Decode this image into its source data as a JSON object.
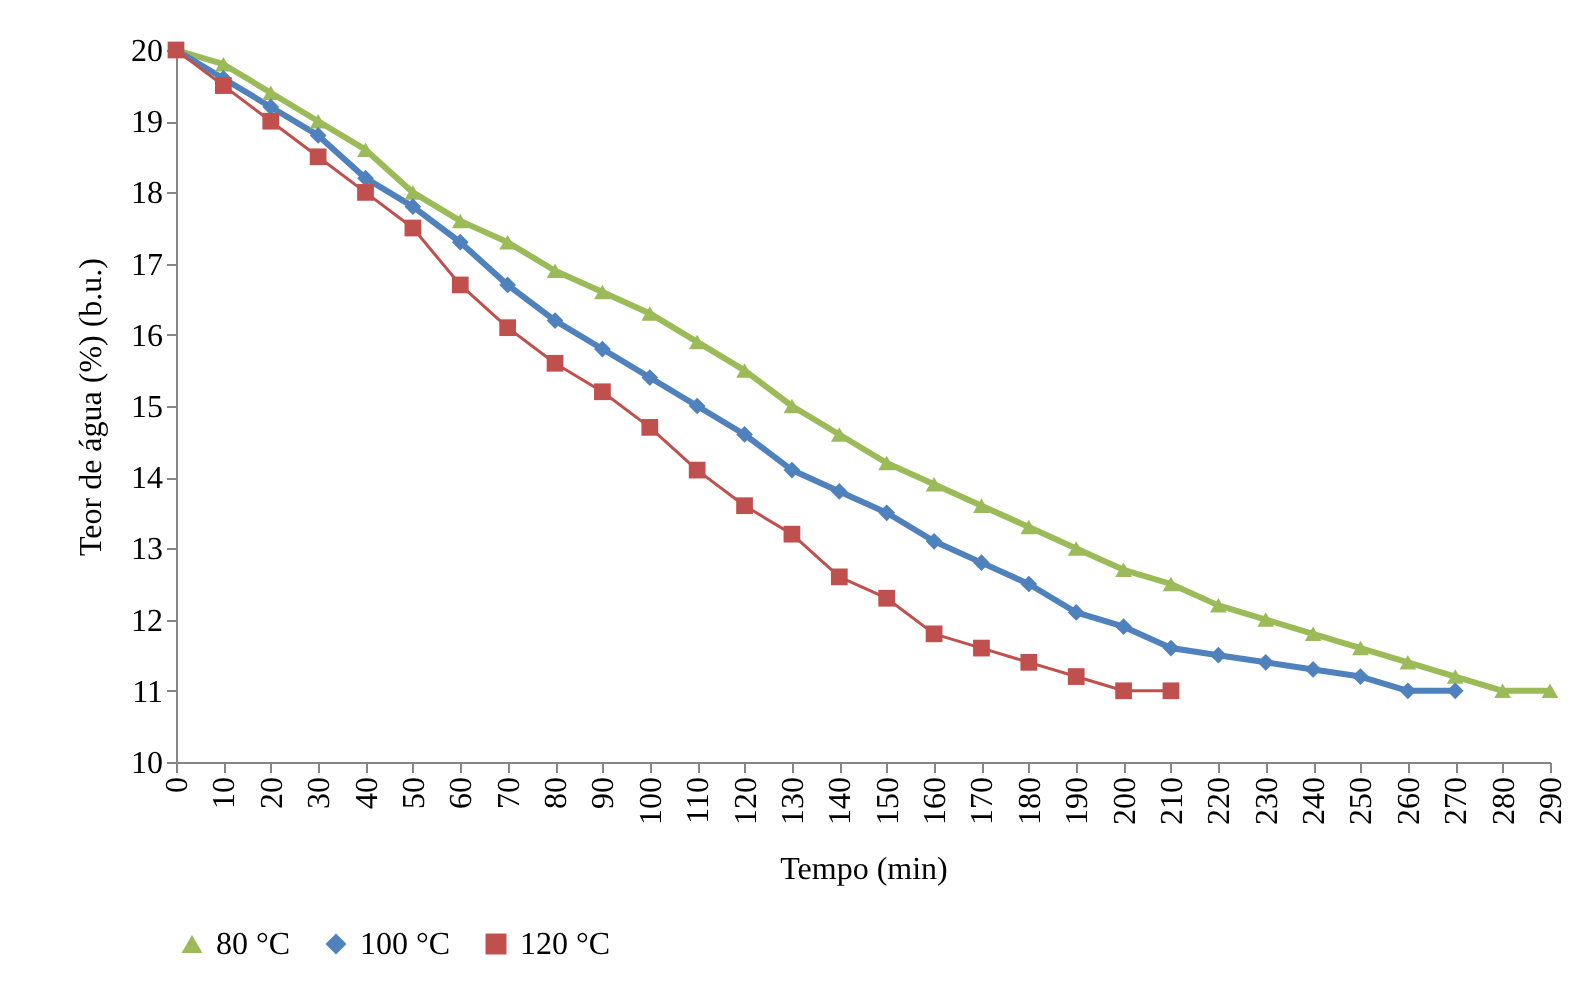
{
  "chart_data": {
    "type": "line",
    "xlabel": "Tempo (min)",
    "ylabel": "Teor de água (%) (b.u.)",
    "xlim": [
      0,
      290
    ],
    "xticks": [
      0,
      10,
      20,
      30,
      40,
      50,
      60,
      70,
      80,
      90,
      100,
      110,
      120,
      130,
      140,
      150,
      160,
      170,
      180,
      190,
      200,
      210,
      220,
      230,
      240,
      250,
      260,
      270,
      280,
      290
    ],
    "ylim": [
      10,
      20
    ],
    "yticks": [
      10,
      11,
      12,
      13,
      14,
      15,
      16,
      17,
      18,
      19,
      20
    ],
    "grid": false,
    "legend": "bottom",
    "series": [
      {
        "name": "80 °C",
        "color": "#9bbb59",
        "marker": "triangle",
        "x": [
          0,
          10,
          20,
          30,
          40,
          50,
          60,
          70,
          80,
          90,
          100,
          110,
          120,
          130,
          140,
          150,
          160,
          170,
          180,
          190,
          200,
          210,
          220,
          230,
          240,
          250,
          260,
          270,
          280,
          290
        ],
        "values": [
          20,
          19.8,
          19.4,
          19.0,
          18.6,
          18.0,
          17.6,
          17.3,
          16.9,
          16.6,
          16.3,
          15.9,
          15.5,
          15.0,
          14.6,
          14.2,
          13.9,
          13.6,
          13.3,
          13.0,
          12.7,
          12.5,
          12.2,
          12.0,
          11.8,
          11.6,
          11.4,
          11.2,
          11.0,
          11.0
        ]
      },
      {
        "name": "100 °C",
        "color": "#4f81bd",
        "marker": "diamond",
        "x": [
          0,
          10,
          20,
          30,
          40,
          50,
          60,
          70,
          80,
          90,
          100,
          110,
          120,
          130,
          140,
          150,
          160,
          170,
          180,
          190,
          200,
          210,
          220,
          230,
          240,
          250,
          260,
          270
        ],
        "values": [
          20,
          19.6,
          19.2,
          18.8,
          18.2,
          17.8,
          17.3,
          16.7,
          16.2,
          15.8,
          15.4,
          15.0,
          14.6,
          14.1,
          13.8,
          13.5,
          13.1,
          12.8,
          12.5,
          12.1,
          11.9,
          11.6,
          11.5,
          11.4,
          11.3,
          11.2,
          11.0,
          11.0
        ]
      },
      {
        "name": "120 °C",
        "color": "#c0504d",
        "marker": "square",
        "x": [
          0,
          10,
          20,
          30,
          40,
          50,
          60,
          70,
          80,
          90,
          100,
          110,
          120,
          130,
          140,
          150,
          160,
          170,
          180,
          190,
          200,
          210
        ],
        "values": [
          20,
          19.5,
          19.0,
          18.5,
          18.0,
          17.5,
          16.7,
          16.1,
          15.6,
          15.2,
          14.7,
          14.1,
          13.6,
          13.2,
          12.6,
          12.3,
          11.8,
          11.6,
          11.4,
          11.2,
          11.0,
          11.0
        ]
      }
    ]
  }
}
